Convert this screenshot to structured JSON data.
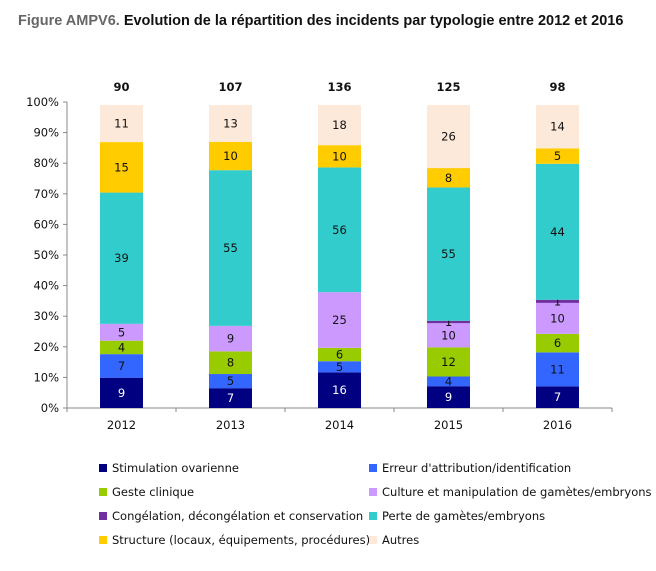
{
  "title": {
    "prefix": "Figure AMPV6.",
    "text": " Evolution de la répartition des incidents par typologie entre 2012 et 2016"
  },
  "chart_data": {
    "type": "bar",
    "stacked": "percent",
    "title": "Figure AMPV6. Evolution de la répartition des incidents par typologie entre 2012 et 2016",
    "xlabel": "",
    "ylabel": "",
    "ylim": [
      0,
      100
    ],
    "yticks": [
      "0%",
      "10%",
      "20%",
      "30%",
      "40%",
      "50%",
      "60%",
      "70%",
      "80%",
      "90%",
      "100%"
    ],
    "categories": [
      "2012",
      "2013",
      "2014",
      "2015",
      "2016"
    ],
    "totals": [
      90,
      107,
      136,
      125,
      98
    ],
    "series": [
      {
        "name": "Stimulation ovarienne",
        "color": "#000080",
        "label_color": "#ffffff",
        "values": [
          9,
          7,
          16,
          9,
          7
        ]
      },
      {
        "name": "Erreur d'attribution/identification",
        "color": "#3366ff",
        "label_color": "#111111",
        "values": [
          7,
          5,
          5,
          4,
          11
        ]
      },
      {
        "name": "Geste clinique",
        "color": "#99cc00",
        "label_color": "#111111",
        "values": [
          4,
          8,
          6,
          12,
          6
        ]
      },
      {
        "name": "Culture et manipulation de gamètes/embryons",
        "color": "#cc99ff",
        "label_color": "#111111",
        "values": [
          5,
          9,
          25,
          10,
          10
        ]
      },
      {
        "name": "Congélation, décongélation et conservation",
        "color": "#7030a0",
        "label_color": "#111111",
        "values": [
          0,
          0,
          0,
          1,
          1
        ]
      },
      {
        "name": "Perte de gamètes/embryons",
        "color": "#33cccc",
        "label_color": "#111111",
        "values": [
          39,
          55,
          56,
          55,
          44
        ]
      },
      {
        "name": "Structure (locaux, équipements, procédures)",
        "color": "#ffcc00",
        "label_color": "#111111",
        "values": [
          15,
          10,
          10,
          8,
          5
        ]
      },
      {
        "name": "Autres",
        "color": "#fde9d9",
        "label_color": "#111111",
        "values": [
          11,
          13,
          18,
          26,
          14
        ]
      }
    ],
    "legend": "bottom",
    "grid": false
  }
}
